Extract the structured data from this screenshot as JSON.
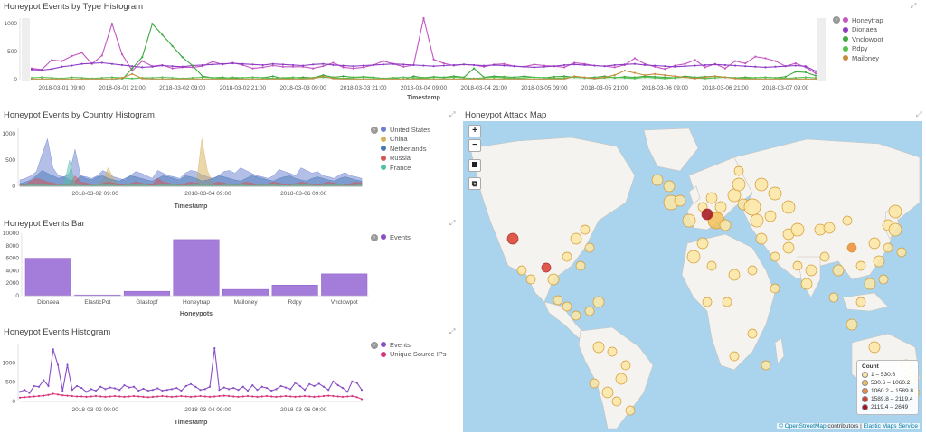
{
  "colors": {
    "honeytrap": "#c455c3",
    "dionaea": "#8e3bc3",
    "vnclowpot": "#3fa83f",
    "rdpy": "#54c24f",
    "mailoney": "#c78b3c",
    "us": "#6a7fd1",
    "china": "#d6b15a",
    "netherlands": "#4878b5",
    "russia": "#d65454",
    "france": "#4fc1a6",
    "events": "#8a4fc6",
    "uniq": "#d6337a",
    "bar": "#a47cd9"
  },
  "p1": {
    "title": "Honeypot Events by Type Histogram",
    "xlabel": "Timestamp",
    "y_ticks": [
      "1000",
      "500",
      "0"
    ],
    "x_ticks": [
      "2018-03-01 09:00",
      "2018-03-01 21:00",
      "2018-03-02 09:00",
      "2018-03-02 21:00",
      "2018-03-03 09:00",
      "2018-03-03 21:00",
      "2018-03-04 09:00",
      "2018-03-04 21:00",
      "2018-03-05 09:00",
      "2018-03-05 21:00",
      "2018-03-06 09:00",
      "2018-03-06 21:00",
      "2018-03-07 09:00"
    ],
    "legend": [
      "Honeytrap",
      "Dionaea",
      "Vnclowpot",
      "Rdpy",
      "Mailoney"
    ]
  },
  "p2": {
    "title": "Honeypot Events by Country Histogram",
    "xlabel": "Timestamp",
    "y_ticks": [
      "1000",
      "500",
      "0"
    ],
    "x_ticks": [
      "2018-03-02 09:00",
      "2018-03-04 09:00",
      "2018-03-06 09:00"
    ],
    "legend": [
      "United States",
      "China",
      "Netherlands",
      "Russia",
      "France"
    ]
  },
  "p3": {
    "title": "Honeypot Events Bar",
    "xlabel": "Honeypots",
    "y_ticks": [
      "10000",
      "8000",
      "6000",
      "4000",
      "2000",
      "0"
    ],
    "legend": [
      "Events"
    ]
  },
  "p4": {
    "title": "Honeypot Events Histogram",
    "xlabel": "Timestamp",
    "y_ticks": [
      "1000",
      "500",
      "0"
    ],
    "x_ticks": [
      "2018-03-02 09:00",
      "2018-03-04 09:00",
      "2018-03-06 09:00"
    ],
    "legend": [
      "Events",
      "Unique Source IPs"
    ]
  },
  "map": {
    "title": "Honeypot Attack Map",
    "zoom_in": "+",
    "zoom_out": "−",
    "legend_title": "Count",
    "legend": [
      "1 – 530.6",
      "530.6 – 1060.2",
      "1060.2 – 1589.8",
      "1589.8 – 2119.4",
      "2119.4 – 2649"
    ],
    "legend_colors": [
      "#fde6a3",
      "#f5c15a",
      "#f08c3a",
      "#d93d2f",
      "#a3101b"
    ],
    "attrib_link": "© OpenStreetMap",
    "attrib_text": " contributors | ",
    "attrib_link2": "Elastic Maps Service"
  },
  "chart_data": [
    {
      "type": "line",
      "title": "Honeypot Events by Type Histogram",
      "xlabel": "Timestamp",
      "ylim": [
        0,
        1100
      ],
      "series": [
        {
          "name": "Honeytrap",
          "values": [
            200,
            180,
            350,
            330,
            420,
            480,
            280,
            430,
            1000,
            450,
            160,
            330,
            240,
            260,
            200,
            220,
            220,
            240,
            320,
            270,
            300,
            260,
            200,
            220,
            250,
            230,
            230,
            230,
            200,
            240,
            300,
            220,
            200,
            220,
            260,
            330,
            280,
            230,
            260,
            1150,
            360,
            290,
            250,
            270,
            260,
            230,
            270,
            280,
            240,
            230,
            270,
            250,
            240,
            220,
            300,
            280,
            250,
            240,
            220,
            260,
            380,
            280,
            230,
            190,
            250,
            280,
            350,
            220,
            280,
            200,
            330,
            290,
            410,
            380,
            330,
            240,
            290,
            220,
            110
          ]
        },
        {
          "name": "Dionaea",
          "values": [
            180,
            170,
            190,
            230,
            250,
            280,
            290,
            300,
            280,
            260,
            240,
            220,
            230,
            250,
            240,
            230,
            250,
            260,
            270,
            280,
            290,
            280,
            270,
            260,
            280,
            270,
            260,
            250,
            270,
            280,
            260,
            250,
            240,
            250,
            260,
            270,
            280,
            270,
            260,
            250,
            240,
            250,
            260,
            270,
            260,
            250,
            260,
            250,
            240,
            230,
            220,
            230,
            240,
            260,
            270,
            260,
            250,
            240,
            260,
            270,
            280,
            260,
            250,
            240,
            230,
            240,
            250,
            260,
            270,
            260,
            250,
            240,
            230,
            220,
            230,
            240,
            250,
            240,
            150
          ]
        },
        {
          "name": "Vnclowpot",
          "values": [
            0,
            0,
            0,
            0,
            0,
            0,
            0,
            0,
            0,
            0,
            200,
            400,
            1000,
            800,
            600,
            400,
            250,
            60,
            30,
            40,
            20,
            30,
            40,
            30,
            60,
            20,
            30,
            40,
            30,
            80,
            40,
            60,
            40,
            50,
            40,
            20,
            30,
            0,
            60,
            30,
            50,
            40,
            60,
            40,
            200,
            40,
            60,
            50,
            40,
            60,
            40,
            30,
            50,
            60,
            40,
            30,
            40,
            60,
            30,
            50,
            40,
            60,
            50,
            40,
            30,
            60,
            40,
            50,
            60,
            40,
            30,
            40,
            30,
            40,
            30,
            50,
            140,
            130,
            70
          ]
        },
        {
          "name": "Rdpy",
          "values": [
            30,
            40,
            30,
            20,
            40,
            30,
            20,
            30,
            40,
            30,
            20,
            30,
            30,
            40,
            30,
            20,
            30,
            40,
            30,
            20,
            40,
            30,
            40,
            30,
            20,
            30,
            40,
            20,
            30,
            40,
            30,
            20,
            30,
            40,
            30,
            20,
            30,
            40,
            30,
            20,
            40,
            30,
            40,
            30,
            20,
            30,
            40,
            30,
            20,
            30,
            40,
            30,
            20,
            30,
            40,
            30,
            20,
            30,
            40,
            30,
            20,
            40,
            30,
            20,
            30,
            40,
            30,
            20,
            30,
            40,
            30,
            20,
            30,
            40,
            30,
            20,
            30,
            40,
            30
          ]
        },
        {
          "name": "Mailoney",
          "values": [
            10,
            10,
            10,
            10,
            10,
            10,
            10,
            10,
            10,
            30,
            100,
            20,
            10,
            10,
            10,
            10,
            10,
            10,
            10,
            10,
            10,
            10,
            10,
            10,
            10,
            10,
            10,
            10,
            20,
            60,
            20,
            10,
            10,
            10,
            10,
            10,
            10,
            10,
            10,
            10,
            10,
            10,
            10,
            10,
            10,
            10,
            10,
            10,
            10,
            10,
            10,
            10,
            10,
            10,
            60,
            40,
            20,
            40,
            80,
            160,
            120,
            80,
            100,
            80,
            60,
            40,
            20,
            40,
            60,
            40,
            20,
            10,
            10,
            10,
            10,
            10,
            10,
            10,
            10
          ]
        }
      ]
    },
    {
      "type": "area",
      "title": "Honeypot Events by Country Histogram",
      "xlabel": "Timestamp",
      "ylim": [
        0,
        1100
      ],
      "series": [
        {
          "name": "United States",
          "values": [
            120,
            150,
            200,
            280,
            600,
            900,
            350,
            200,
            180,
            250,
            700,
            200,
            180,
            150,
            200,
            300,
            250,
            180,
            150,
            120,
            200,
            280,
            250,
            200,
            150,
            300,
            250,
            200,
            180,
            150,
            250,
            300,
            280,
            220,
            180,
            150,
            200,
            280,
            300,
            250,
            350,
            300,
            250,
            200,
            180,
            150,
            200,
            320,
            280,
            250,
            200,
            350,
            300,
            250,
            280,
            200,
            180,
            150,
            220,
            260,
            200,
            180,
            150
          ]
        },
        {
          "name": "China",
          "values": [
            30,
            40,
            60,
            50,
            40,
            80,
            30,
            40,
            20,
            30,
            60,
            40,
            30,
            20,
            40,
            100,
            350,
            150,
            40,
            30,
            20,
            40,
            30,
            60,
            40,
            50,
            30,
            20,
            40,
            30,
            60,
            40,
            30,
            900,
            300,
            60,
            40,
            50,
            30,
            20,
            40,
            30,
            50,
            40,
            30,
            20,
            40,
            30,
            20,
            30,
            40,
            30,
            20,
            40,
            30,
            20,
            40,
            30,
            50,
            40,
            30,
            20,
            30
          ]
        },
        {
          "name": "Netherlands",
          "values": [
            50,
            80,
            120,
            200,
            300,
            250,
            200,
            150,
            180,
            120,
            100,
            200,
            150,
            120,
            180,
            200,
            150,
            120,
            100,
            150,
            200,
            180,
            150,
            120,
            100,
            150,
            200,
            180,
            150,
            120,
            200,
            180,
            150,
            100,
            120,
            150,
            200,
            180,
            150,
            120,
            100,
            150,
            200,
            180,
            150,
            120,
            100,
            150,
            180,
            200,
            150,
            120,
            100,
            150,
            180,
            150,
            120,
            100,
            150,
            180,
            150,
            120,
            100
          ]
        },
        {
          "name": "Russia",
          "values": [
            20,
            30,
            100,
            150,
            120,
            80,
            60,
            40,
            30,
            50,
            200,
            80,
            60,
            40,
            30,
            50,
            80,
            60,
            40,
            30,
            50,
            80,
            60,
            40,
            30,
            150,
            80,
            60,
            40,
            30,
            50,
            80,
            60,
            40,
            30,
            50,
            80,
            60,
            40,
            30,
            50,
            80,
            60,
            40,
            30,
            50,
            80,
            60,
            40,
            30,
            50,
            80,
            60,
            40,
            30,
            50,
            80,
            60,
            40,
            30,
            50,
            80,
            60
          ]
        },
        {
          "name": "France",
          "values": [
            10,
            20,
            30,
            40,
            30,
            20,
            10,
            20,
            30,
            500,
            30,
            20,
            10,
            20,
            30,
            40,
            30,
            20,
            10,
            20,
            30,
            40,
            30,
            20,
            10,
            20,
            30,
            40,
            30,
            20,
            10,
            20,
            30,
            40,
            30,
            20,
            10,
            20,
            30,
            40,
            30,
            20,
            10,
            20,
            30,
            40,
            30,
            20,
            10,
            20,
            30,
            40,
            30,
            20,
            10,
            20,
            30,
            40,
            30,
            20,
            10,
            20,
            30
          ]
        }
      ]
    },
    {
      "type": "bar",
      "title": "Honeypot Events Bar",
      "xlabel": "Honeypots",
      "ylim": [
        0,
        10000
      ],
      "categories": [
        "Dionaea",
        "ElasticPot",
        "Glastopf",
        "Honeytrap",
        "Mailoney",
        "Rdpy",
        "Vnclowpot"
      ],
      "series": [
        {
          "name": "Events",
          "values": [
            6000,
            120,
            700,
            9000,
            1000,
            1700,
            3500
          ]
        }
      ]
    },
    {
      "type": "line",
      "title": "Honeypot Events Histogram",
      "xlabel": "Timestamp",
      "ylim": [
        0,
        1500
      ],
      "series": [
        {
          "name": "Events",
          "values": [
            250,
            300,
            220,
            400,
            380,
            550,
            400,
            1350,
            950,
            280,
            950,
            300,
            400,
            350,
            250,
            320,
            280,
            380,
            320,
            360,
            340,
            300,
            420,
            360,
            380,
            280,
            330,
            280,
            300,
            340,
            280,
            300,
            320,
            350,
            280,
            400,
            450,
            380,
            300,
            320,
            380,
            1380,
            300,
            360,
            320,
            350,
            300,
            380,
            280,
            420,
            300,
            380,
            350,
            280,
            320,
            400,
            360,
            320,
            480,
            400,
            300,
            450,
            400,
            460,
            380,
            300,
            520,
            420,
            350,
            250,
            520,
            480,
            300
          ]
        },
        {
          "name": "Unique Source IPs",
          "values": [
            100,
            110,
            120,
            130,
            140,
            150,
            170,
            200,
            180,
            160,
            150,
            140,
            130,
            130,
            120,
            130,
            140,
            130,
            120,
            130,
            140,
            130,
            120,
            130,
            140,
            130,
            120,
            110,
            120,
            130,
            140,
            130,
            120,
            130,
            140,
            130,
            120,
            130,
            140,
            130,
            120,
            130,
            140,
            150,
            140,
            130,
            120,
            130,
            140,
            130,
            120,
            130,
            140,
            130,
            120,
            130,
            140,
            130,
            120,
            130,
            140,
            130,
            120,
            130,
            140,
            150,
            140,
            130,
            120,
            130,
            140,
            110,
            60
          ]
        }
      ]
    }
  ]
}
